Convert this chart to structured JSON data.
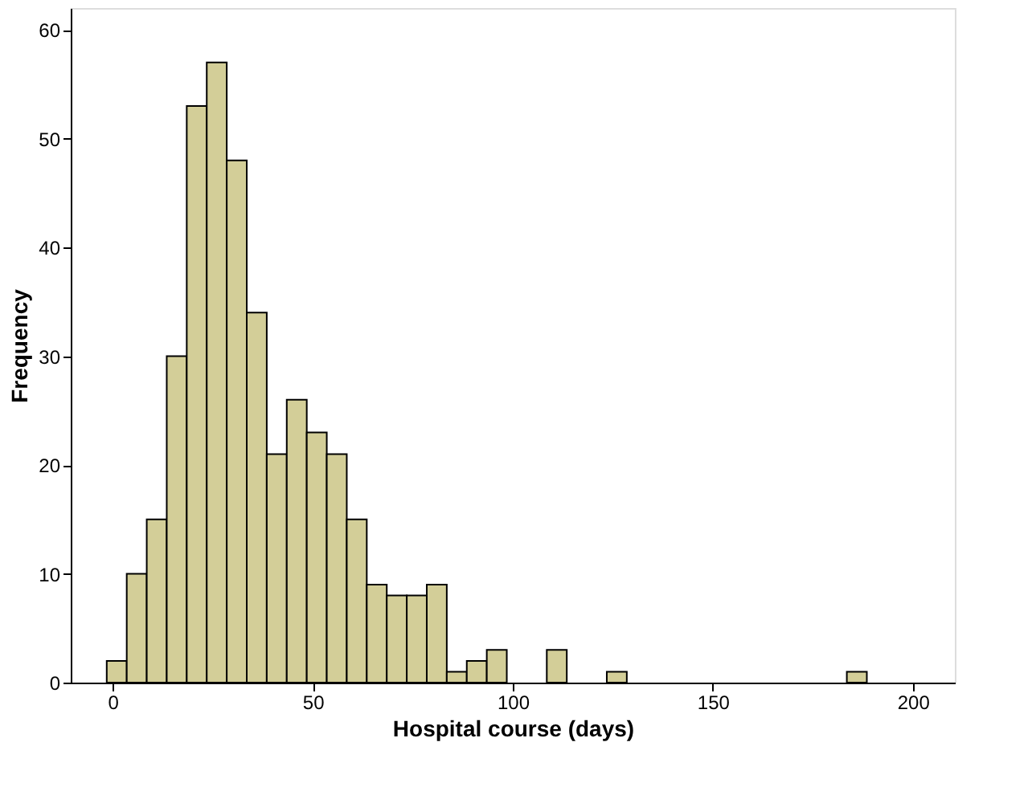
{
  "chart_data": {
    "type": "histogram",
    "xlabel": "Hospital course (days)",
    "ylabel": "Frequency",
    "bins": [
      -1.5,
      3.5,
      8.5,
      13.5,
      18.5,
      23.5,
      28.5,
      33.5,
      38.5,
      43.5,
      48.5,
      53.5,
      58.5,
      63.5,
      68.5,
      73.5,
      78.5,
      83.5,
      88.5,
      93.5,
      98.5,
      103.5,
      108.5,
      113.5,
      118.5,
      123.5,
      128.5,
      133.5,
      138.5,
      143.5,
      148.5,
      153.5,
      158.5,
      163.5,
      168.5,
      173.5,
      178.5,
      183.5,
      188.5
    ],
    "values": [
      2,
      10,
      15,
      30,
      53,
      57,
      48,
      34,
      21,
      26,
      23,
      21,
      15,
      9,
      8,
      8,
      9,
      1,
      2,
      3,
      0,
      0,
      3,
      0,
      0,
      1,
      0,
      0,
      0,
      0,
      0,
      0,
      0,
      0,
      0,
      0,
      0,
      1
    ],
    "color": "#d3ce98",
    "xlim": [
      -10.5,
      210.5
    ],
    "xticks": [
      0,
      50,
      100,
      150,
      200
    ],
    "ylim": [
      0,
      62
    ],
    "yticks": [
      0,
      10,
      20,
      30,
      40,
      50,
      60
    ],
    "grid": false
  }
}
